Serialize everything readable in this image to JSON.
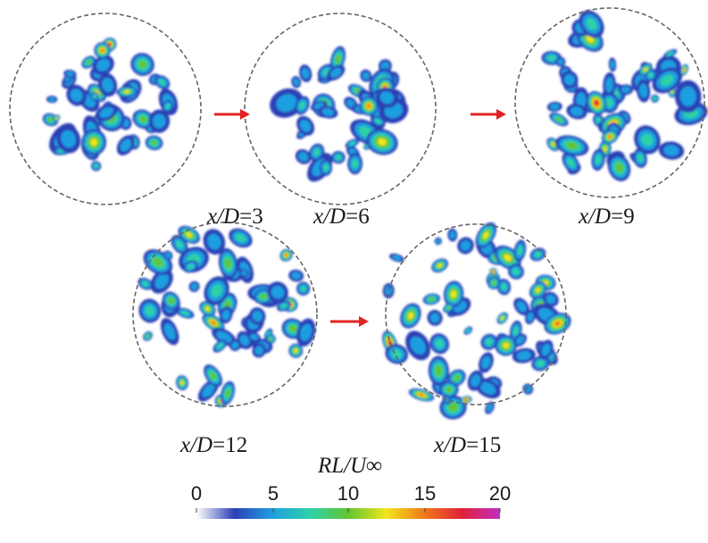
{
  "panels": [
    {
      "var": "x/D",
      "value": "3"
    },
    {
      "var": "x/D",
      "value": "6"
    },
    {
      "var": "x/D",
      "value": "9"
    },
    {
      "var": "x/D",
      "value": "12"
    },
    {
      "var": "x/D",
      "value": "15"
    }
  ],
  "colorbar": {
    "title": "RL/U∞",
    "ticks": [
      "0",
      "5",
      "10",
      "15",
      "20"
    ],
    "min": 0,
    "max": 20,
    "colors": [
      "#ffffff",
      "#2b3fb5",
      "#1f9fe0",
      "#2fd0a8",
      "#62c532",
      "#f2e51c",
      "#f07a1a",
      "#e0203a",
      "#c02fc0"
    ]
  },
  "arrow_color": "#e02424",
  "circle_color": "#666666"
}
